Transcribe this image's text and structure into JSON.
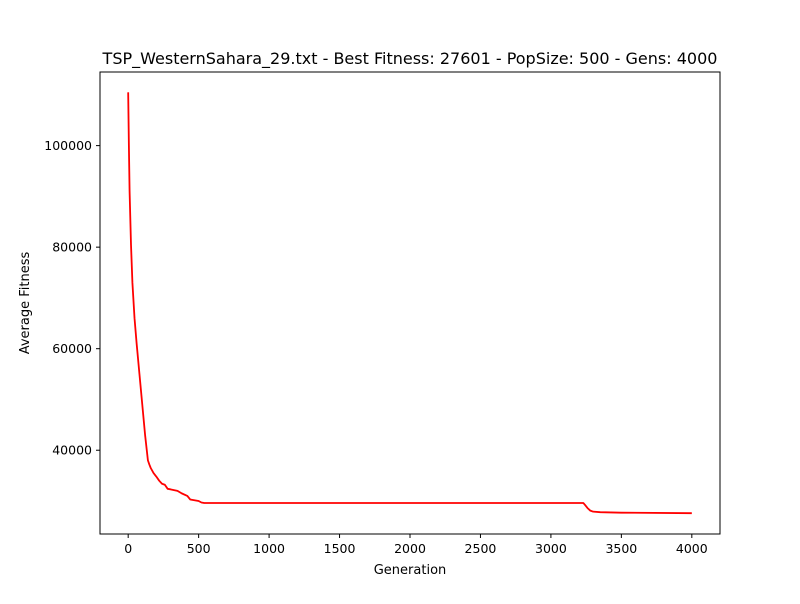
{
  "chart_data": {
    "type": "line",
    "title": "TSP_WesternSahara_29.txt - Best Fitness: 27601 - PopSize: 500 - Gens: 4000",
    "xlabel": "Generation",
    "ylabel": "Average Fitness",
    "xlim": [
      -200,
      4200
    ],
    "ylim": [
      23500,
      114500
    ],
    "xticks": [
      0,
      500,
      1000,
      1500,
      2000,
      2500,
      3000,
      3500,
      4000
    ],
    "yticks": [
      40000,
      60000,
      80000,
      100000
    ],
    "grid": false,
    "legend": "none",
    "series": [
      {
        "color": "#ff0000",
        "x": [
          0,
          5,
          10,
          20,
          30,
          45,
          60,
          80,
          100,
          120,
          140,
          150,
          160,
          180,
          200,
          220,
          240,
          260,
          280,
          300,
          350,
          380,
          420,
          440,
          460,
          500,
          520,
          540,
          600,
          800,
          1000,
          1500,
          2000,
          2500,
          3000,
          3200,
          3230,
          3240,
          3260,
          3280,
          3300,
          3350,
          3500,
          4000
        ],
        "y": [
          110500,
          100000,
          91000,
          80500,
          73000,
          66000,
          61000,
          55000,
          49000,
          43000,
          38000,
          37200,
          36500,
          35500,
          34800,
          34000,
          33400,
          33200,
          32400,
          32300,
          32000,
          31500,
          31000,
          30300,
          30200,
          30000,
          29700,
          29600,
          29600,
          29600,
          29600,
          29600,
          29600,
          29600,
          29600,
          29600,
          29600,
          29300,
          28600,
          28100,
          27900,
          27800,
          27700,
          27601
        ]
      }
    ]
  }
}
